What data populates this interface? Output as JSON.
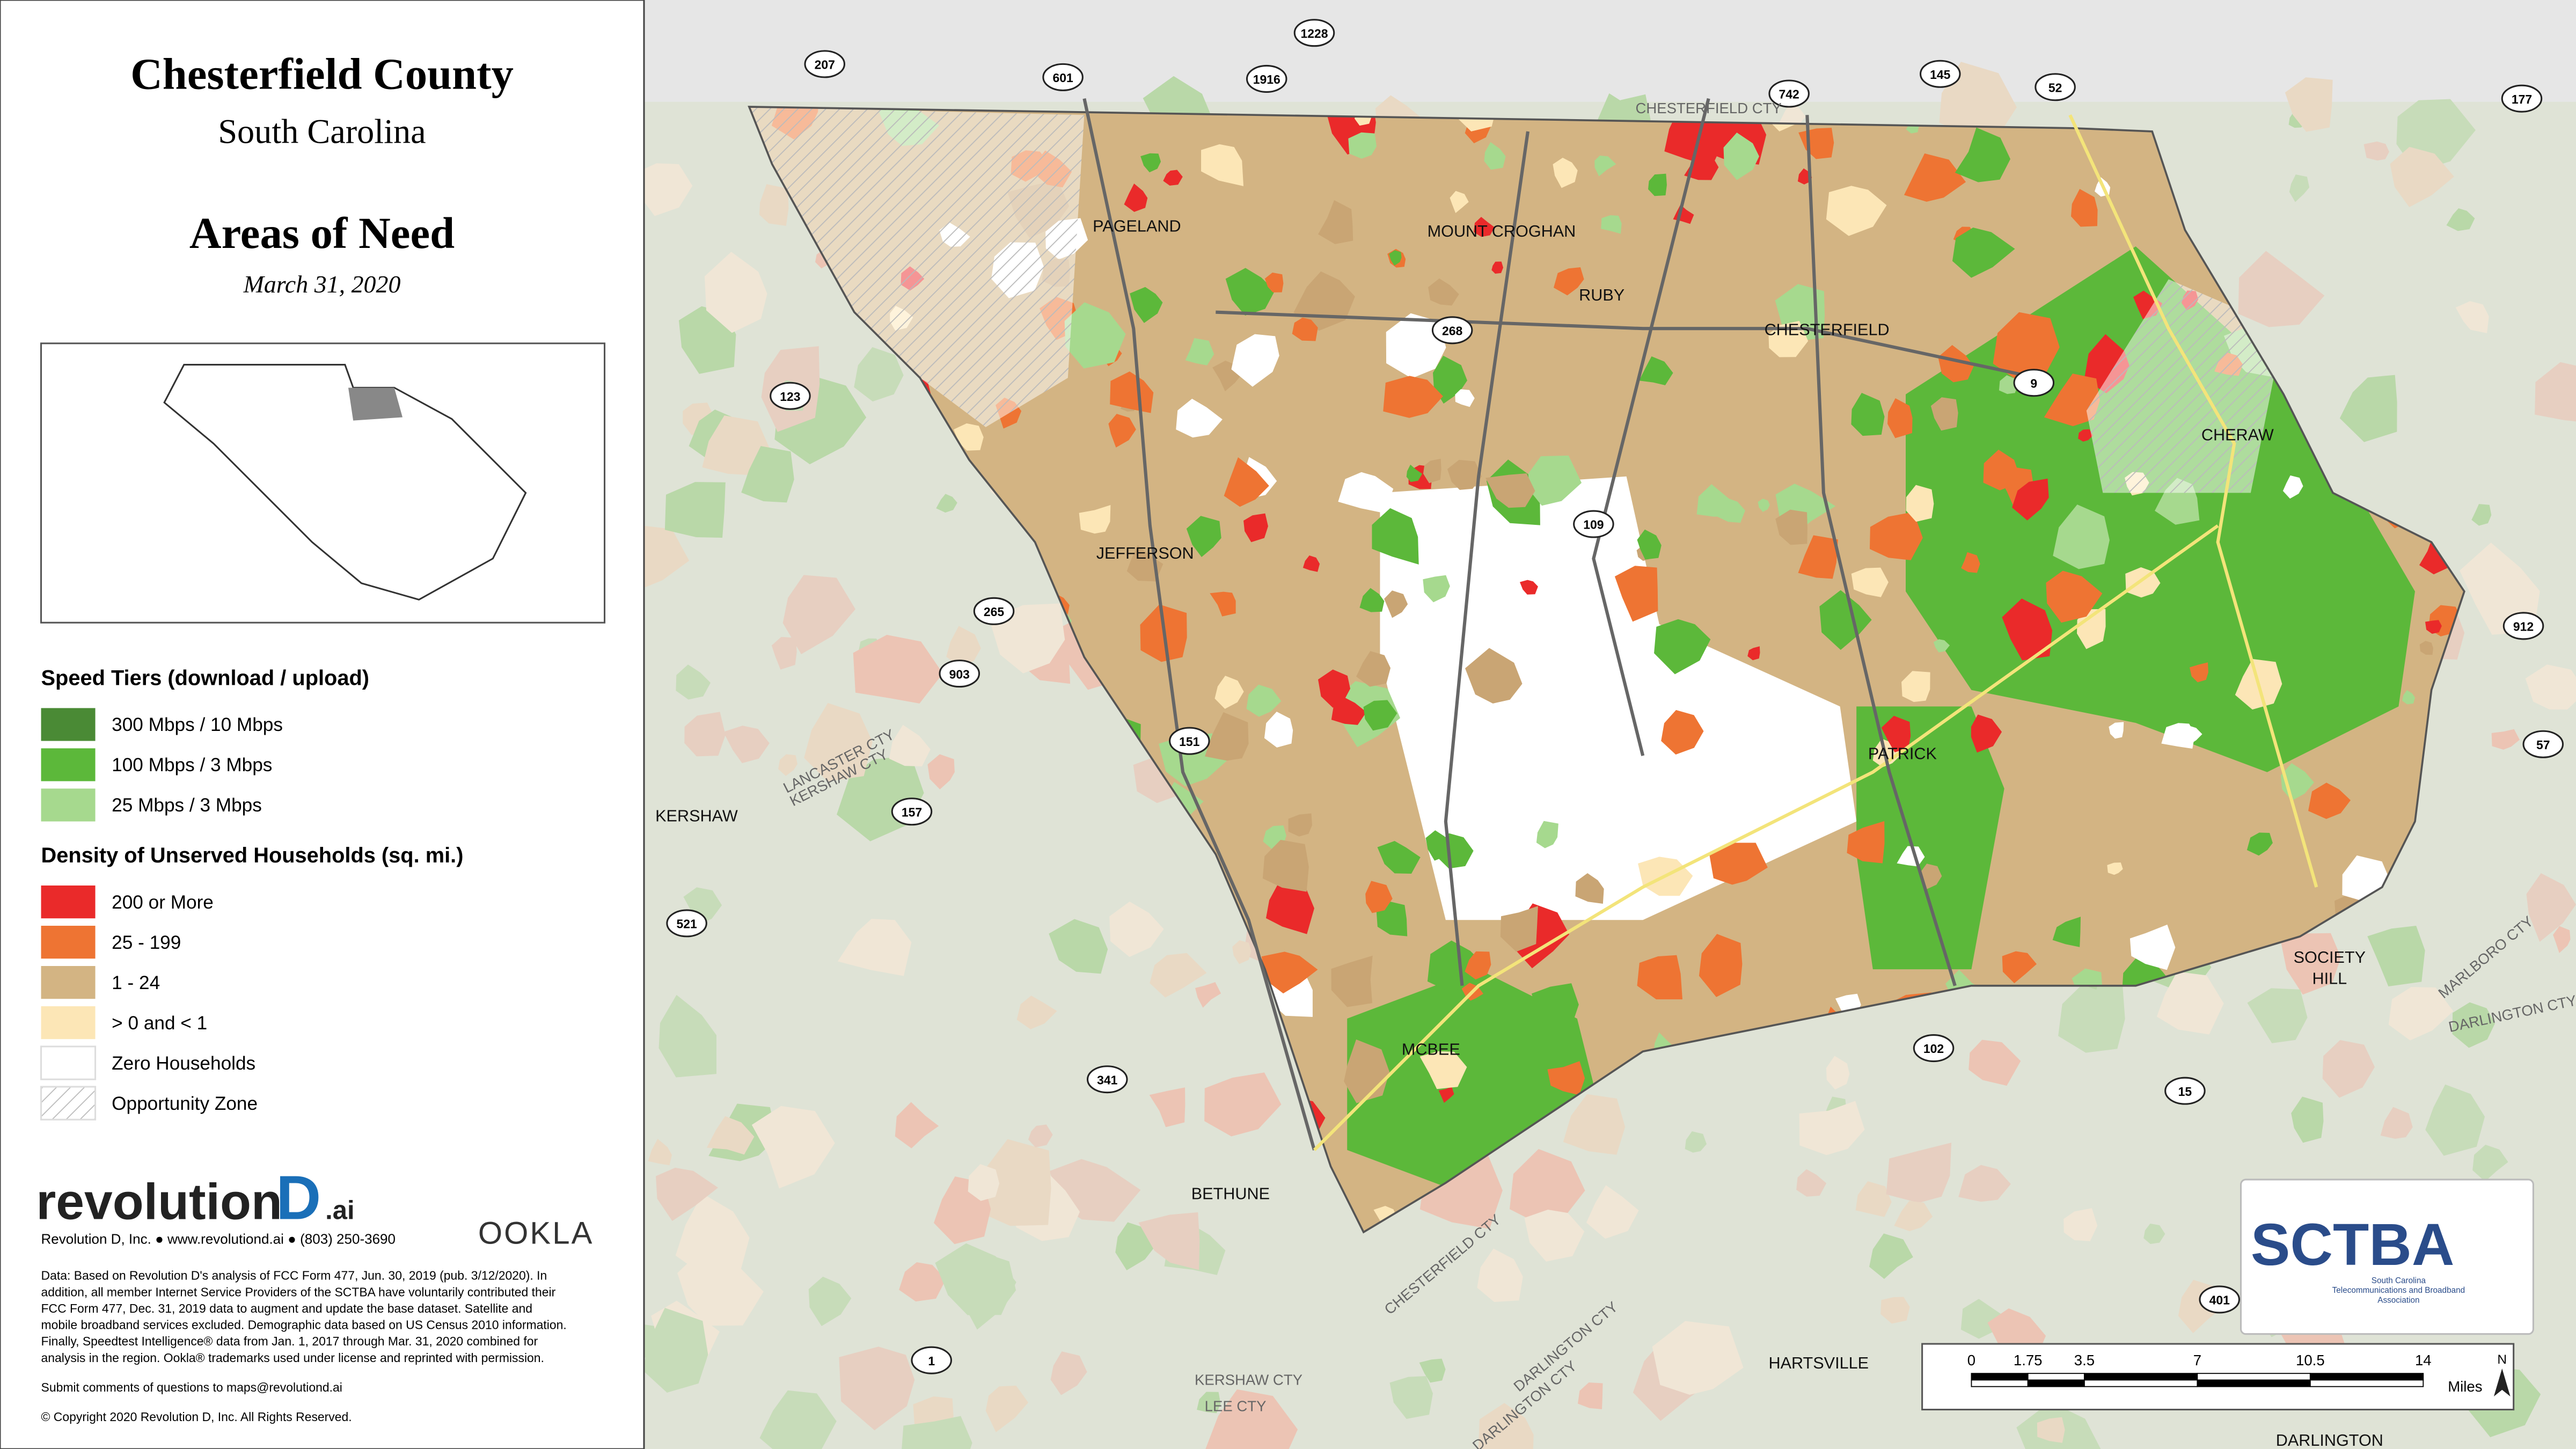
{
  "header": {
    "title": "Chesterfield County",
    "subtitle": "South Carolina",
    "heading": "Areas of Need",
    "date": "March 31, 2020"
  },
  "legend": {
    "speed_title": "Speed Tiers (download / upload)",
    "speed_items": [
      {
        "label": "300 Mbps / 10 Mbps",
        "color": "#4a8a35"
      },
      {
        "label": "100 Mbps / 3 Mbps",
        "color": "#5cb83a"
      },
      {
        "label": "25 Mbps / 3 Mbps",
        "color": "#a6d98e"
      }
    ],
    "density_title": "Density of Unserved Households (sq. mi.)",
    "density_items": [
      {
        "label": "200 or More",
        "color": "#ea2a2a"
      },
      {
        "label": "25 - 199",
        "color": "#ee7433"
      },
      {
        "label": "1 - 24",
        "color": "#d3b483"
      },
      {
        "label": "> 0 and < 1",
        "color": "#fce6b6"
      },
      {
        "label": "Zero Households",
        "color": "#ffffff"
      },
      {
        "label": "Opportunity Zone",
        "color": "hatch"
      }
    ]
  },
  "credits": {
    "brand": "revolution",
    "brand_d": "D",
    "brand_ai": ".ai",
    "contact": "Revolution D, Inc. ● www.revolutiond.ai ● (803) 250-3690",
    "ookla": "OOKLA",
    "note": [
      "Data: Based on Revolution D's analysis of FCC Form 477, Jun. 30, 2019 (pub. 3/12/2020). In",
      "addition, all member Internet Service Providers of the SCTBA have voluntarily contributed their",
      "FCC Form 477, Dec. 31, 2019 data to augment and update the base dataset. Satellite and",
      "mobile broadband services excluded. Demographic data based on US Census 2010 information.",
      "Finally, Speedtest Intelligence® data from Jan. 1, 2017 through Mar. 31, 2020 combined for",
      "analysis in the region. Ookla® trademarks used under license and reprinted with permission."
    ],
    "submit": "Submit comments of questions to maps@revolutiond.ai",
    "copyright": "© Copyright 2020 Revolution D, Inc. All Rights Reserved."
  },
  "map": {
    "places": [
      "PAGELAND",
      "MOUNT CROGHAN",
      "RUBY",
      "CHESTERFIELD",
      "CHERAW",
      "JEFFERSON",
      "PATRICK",
      "KERSHAW",
      "MCBEE",
      "BETHUNE",
      "SOCIETY",
      "HILL",
      "HARTSVILLE",
      "DARLINGTON"
    ],
    "roads": [
      "207",
      "601",
      "1228",
      "1916",
      "742",
      "145",
      "52",
      "177",
      "123",
      "9",
      "268",
      "109",
      "265",
      "903",
      "151",
      "157",
      "912",
      "57",
      "521",
      "341",
      "102",
      "15",
      "401",
      "1"
    ],
    "boundaries": [
      "CHESTERFIELD CTY",
      "LANCASTER CTY",
      "KERSHAW CTY",
      "MARLBORO CTY",
      "DARLINGTON CTY",
      "CHESTERFIELD CTY",
      "DARLINGTON CTY",
      "KERSHAW CTY",
      "LEE CTY",
      "DARLINGTON CTY"
    ]
  },
  "scale_bar": {
    "ticks": [
      0,
      1.75,
      3.5,
      7,
      10.5,
      14
    ],
    "unit": "Miles",
    "north": "N"
  },
  "sctba": {
    "name": "SCTBA",
    "lines": [
      "South Carolina",
      "Telecommunications and Broadband",
      "Association"
    ]
  }
}
